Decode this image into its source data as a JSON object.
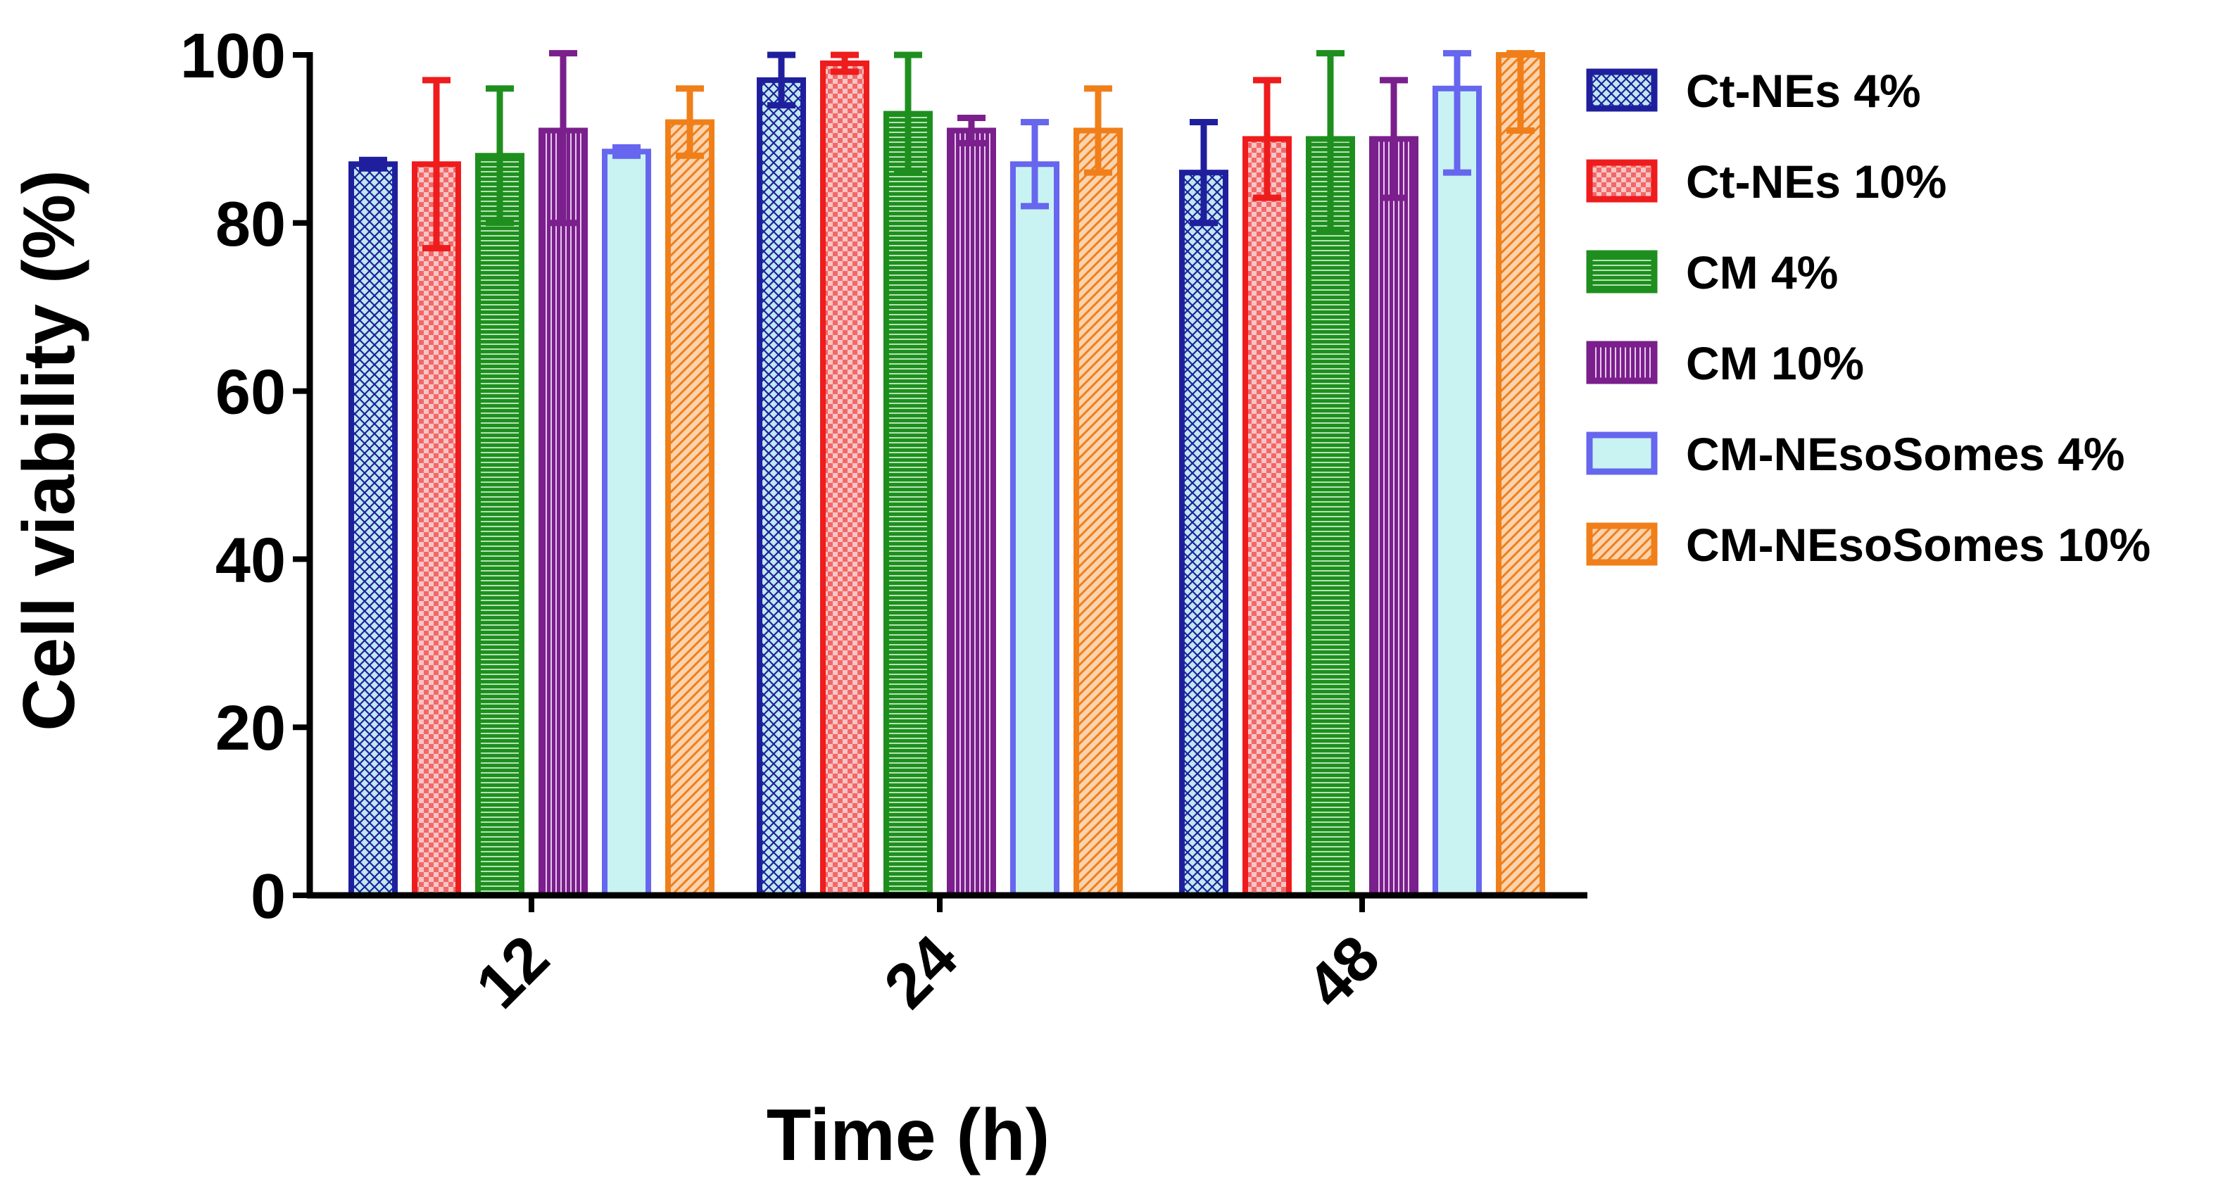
{
  "chart_data": {
    "type": "bar",
    "xlabel": "Time (h)",
    "ylabel": "Cell viability (%)",
    "categories": [
      "12",
      "24",
      "48"
    ],
    "ylim": [
      0,
      100
    ],
    "yticks": [
      "0",
      "20",
      "40",
      "60",
      "80",
      "100"
    ],
    "error_bars": true,
    "legend_position": "right",
    "series": [
      {
        "name": "Ct-NEs 4%",
        "color": "#1f1f9e",
        "fill": "#bfe9ee",
        "pattern": "crosshatch",
        "values": [
          87,
          97,
          86
        ],
        "errors": [
          0.5,
          3,
          6
        ]
      },
      {
        "name": "Ct-NEs 10%",
        "color": "#ee1c1c",
        "fill": "#f7c5c5",
        "pattern": "checker",
        "values": [
          87,
          99,
          90
        ],
        "errors": [
          10,
          1,
          7
        ]
      },
      {
        "name": "CM 4%",
        "color": "#1e8f1e",
        "fill": "#b7e3b7",
        "pattern": "horizontal-lines",
        "values": [
          88,
          93,
          90
        ],
        "errors": [
          8,
          7,
          11
        ]
      },
      {
        "name": "CM 10%",
        "color": "#7a1f8c",
        "fill": "#e6c8ee",
        "pattern": "vertical-lines",
        "values": [
          91,
          91,
          90
        ],
        "errors": [
          11,
          1.5,
          7
        ]
      },
      {
        "name": "CM-NEsoSomes 4%",
        "color": "#6666ee",
        "fill": "#c9f3f3",
        "pattern": "solid",
        "values": [
          88.5,
          87,
          96
        ],
        "errors": [
          0.5,
          5,
          10
        ]
      },
      {
        "name": "CM-NEsoSomes 10%",
        "color": "#f07f1a",
        "fill": "#fbd3ae",
        "pattern": "diagonal",
        "values": [
          92,
          91,
          100
        ],
        "errors": [
          4,
          5,
          9
        ]
      }
    ]
  }
}
